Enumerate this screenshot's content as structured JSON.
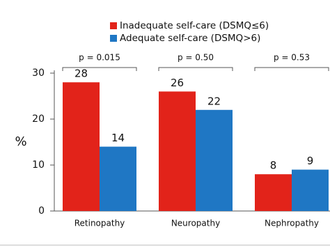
{
  "chart_data": {
    "type": "bar",
    "y_label": "%",
    "categories": [
      "Retinopathy",
      "Neuropathy",
      "Nephropathy"
    ],
    "annotations": [
      "p = 0.015",
      "p = 0.50",
      "p = 0.53"
    ],
    "series": [
      {
        "name": "Inadequate self-care (DSMQ≤6)",
        "color": "#e2231a",
        "values": [
          28,
          26,
          8
        ]
      },
      {
        "name": "Adequate self-care (DSMQ>6)",
        "color": "#1f77c4",
        "values": [
          14,
          22,
          9
        ]
      }
    ],
    "ylim": [
      0,
      30
    ],
    "yticks": [
      0,
      10,
      20,
      30
    ]
  }
}
